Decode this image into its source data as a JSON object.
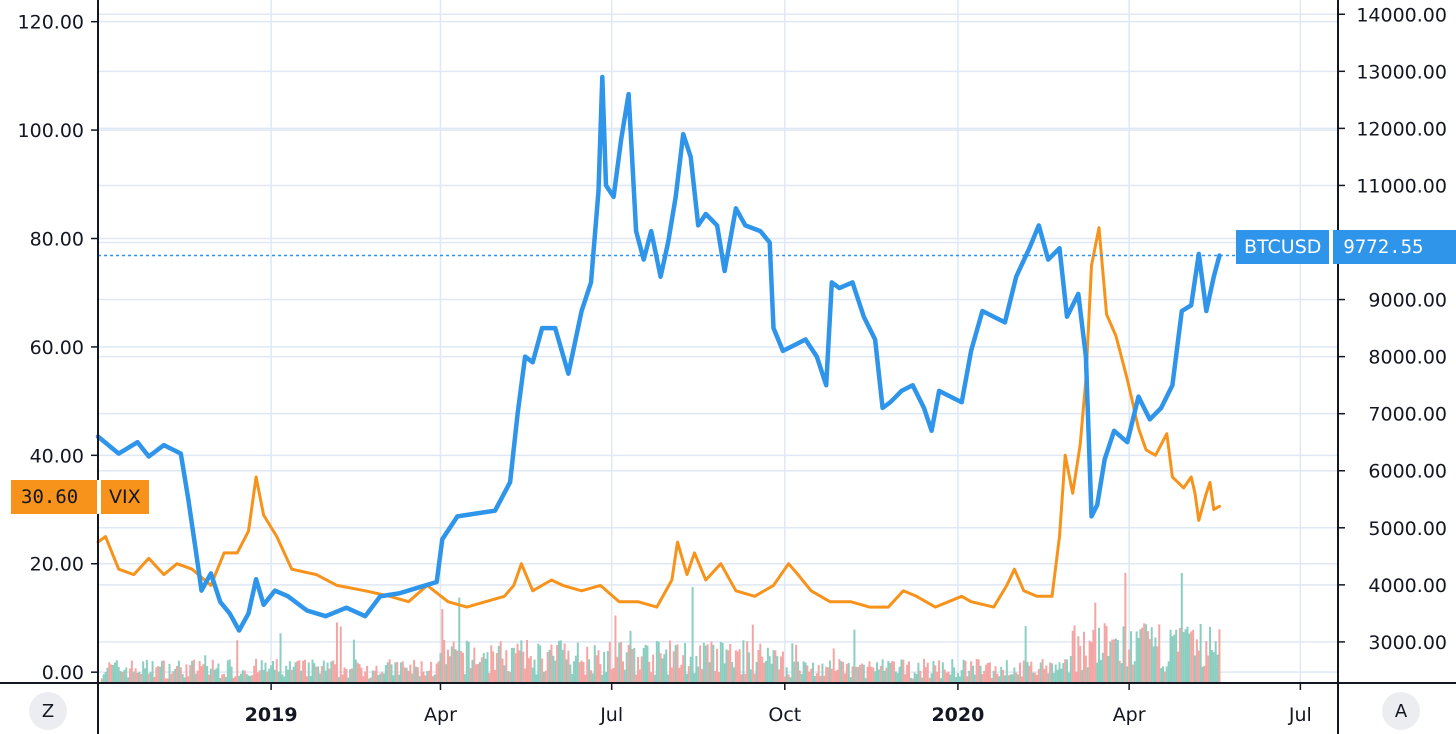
{
  "colors": {
    "btc": "#2f95ea",
    "vix": "#f7931a",
    "grid": "#dfe8f4",
    "vol_up": "#8ccfc1",
    "vol_down": "#f4a6a4",
    "axis": "#131722"
  },
  "buttons": {
    "left": "Z",
    "right": "A"
  },
  "tags": {
    "btc_label": "BTCUSD",
    "btc_value": "9772.55",
    "vix_value": "30.60",
    "vix_label": "VIX"
  },
  "chart_data": {
    "type": "line",
    "x_ticks": [
      "2019",
      "Apr",
      "Jul",
      "Oct",
      "2020",
      "Apr",
      "Jul"
    ],
    "x_ticks_bold": [
      true,
      false,
      false,
      false,
      true,
      false,
      false
    ],
    "x_tick_dates": [
      "2019-01-01",
      "2019-04-01",
      "2019-07-01",
      "2019-10-01",
      "2020-01-01",
      "2020-04-01",
      "2020-07-01"
    ],
    "x_range": [
      "2018-10-01",
      "2020-07-21"
    ],
    "left_axis": {
      "ticks": [
        "0.00",
        "20.00",
        "40.00",
        "60.00",
        "80.00",
        "100.00",
        "120.00"
      ],
      "range": [
        -2,
        124
      ]
    },
    "right_axis": {
      "ticks": [
        "3000.00",
        "4000.00",
        "5000.00",
        "6000.00",
        "7000.00",
        "8000.00",
        "9000.00",
        "10000.00",
        "11000.00",
        "12000.00",
        "13000.00",
        "14000.00"
      ],
      "range": [
        2280,
        14250
      ]
    },
    "series": [
      {
        "name": "BTCUSD",
        "axis": "right",
        "points": [
          [
            "2018-10-01",
            6600
          ],
          [
            "2018-10-12",
            6300
          ],
          [
            "2018-10-22",
            6500
          ],
          [
            "2018-10-28",
            6250
          ],
          [
            "2018-11-05",
            6450
          ],
          [
            "2018-11-14",
            6300
          ],
          [
            "2018-11-18",
            5500
          ],
          [
            "2018-11-22",
            4600
          ],
          [
            "2018-11-25",
            3900
          ],
          [
            "2018-11-30",
            4200
          ],
          [
            "2018-12-05",
            3700
          ],
          [
            "2018-12-10",
            3500
          ],
          [
            "2018-12-15",
            3200
          ],
          [
            "2018-12-20",
            3500
          ],
          [
            "2018-12-24",
            4100
          ],
          [
            "2018-12-28",
            3650
          ],
          [
            "2019-01-03",
            3900
          ],
          [
            "2019-01-10",
            3800
          ],
          [
            "2019-01-20",
            3550
          ],
          [
            "2019-01-30",
            3450
          ],
          [
            "2019-02-10",
            3600
          ],
          [
            "2019-02-20",
            3450
          ],
          [
            "2019-02-28",
            3800
          ],
          [
            "2019-03-10",
            3850
          ],
          [
            "2019-03-20",
            3950
          ],
          [
            "2019-03-30",
            4050
          ],
          [
            "2019-04-02",
            4800
          ],
          [
            "2019-04-10",
            5200
          ],
          [
            "2019-04-20",
            5250
          ],
          [
            "2019-04-30",
            5300
          ],
          [
            "2019-05-08",
            5800
          ],
          [
            "2019-05-12",
            7000
          ],
          [
            "2019-05-16",
            8000
          ],
          [
            "2019-05-20",
            7900
          ],
          [
            "2019-05-25",
            8500
          ],
          [
            "2019-06-01",
            8500
          ],
          [
            "2019-06-08",
            7700
          ],
          [
            "2019-06-15",
            8800
          ],
          [
            "2019-06-20",
            9300
          ],
          [
            "2019-06-24",
            10900
          ],
          [
            "2019-06-26",
            12900
          ],
          [
            "2019-06-28",
            11000
          ],
          [
            "2019-07-02",
            10800
          ],
          [
            "2019-07-06",
            11800
          ],
          [
            "2019-07-10",
            12600
          ],
          [
            "2019-07-14",
            10200
          ],
          [
            "2019-07-18",
            9700
          ],
          [
            "2019-07-22",
            10200
          ],
          [
            "2019-07-27",
            9400
          ],
          [
            "2019-07-31",
            10000
          ],
          [
            "2019-08-04",
            10800
          ],
          [
            "2019-08-08",
            11900
          ],
          [
            "2019-08-12",
            11500
          ],
          [
            "2019-08-16",
            10300
          ],
          [
            "2019-08-20",
            10500
          ],
          [
            "2019-08-26",
            10300
          ],
          [
            "2019-08-30",
            9500
          ],
          [
            "2019-09-05",
            10600
          ],
          [
            "2019-09-10",
            10300
          ],
          [
            "2019-09-18",
            10200
          ],
          [
            "2019-09-23",
            10000
          ],
          [
            "2019-09-25",
            8500
          ],
          [
            "2019-09-30",
            8100
          ],
          [
            "2019-10-06",
            8200
          ],
          [
            "2019-10-12",
            8300
          ],
          [
            "2019-10-18",
            8000
          ],
          [
            "2019-10-23",
            7500
          ],
          [
            "2019-10-26",
            9300
          ],
          [
            "2019-10-30",
            9200
          ],
          [
            "2019-11-06",
            9300
          ],
          [
            "2019-11-12",
            8700
          ],
          [
            "2019-11-18",
            8300
          ],
          [
            "2019-11-22",
            7100
          ],
          [
            "2019-11-26",
            7200
          ],
          [
            "2019-12-02",
            7400
          ],
          [
            "2019-12-08",
            7500
          ],
          [
            "2019-12-14",
            7100
          ],
          [
            "2019-12-18",
            6700
          ],
          [
            "2019-12-22",
            7400
          ],
          [
            "2019-12-28",
            7300
          ],
          [
            "2020-01-03",
            7200
          ],
          [
            "2020-01-08",
            8100
          ],
          [
            "2020-01-14",
            8800
          ],
          [
            "2020-01-20",
            8700
          ],
          [
            "2020-01-26",
            8600
          ],
          [
            "2020-02-01",
            9400
          ],
          [
            "2020-02-08",
            9900
          ],
          [
            "2020-02-13",
            10300
          ],
          [
            "2020-02-18",
            9700
          ],
          [
            "2020-02-24",
            9900
          ],
          [
            "2020-02-28",
            8700
          ],
          [
            "2020-03-05",
            9100
          ],
          [
            "2020-03-09",
            8000
          ],
          [
            "2020-03-12",
            5200
          ],
          [
            "2020-03-15",
            5400
          ],
          [
            "2020-03-19",
            6200
          ],
          [
            "2020-03-24",
            6700
          ],
          [
            "2020-03-31",
            6500
          ],
          [
            "2020-04-06",
            7300
          ],
          [
            "2020-04-12",
            6900
          ],
          [
            "2020-04-18",
            7100
          ],
          [
            "2020-04-24",
            7500
          ],
          [
            "2020-04-29",
            8800
          ],
          [
            "2020-05-04",
            8900
          ],
          [
            "2020-05-08",
            9800
          ],
          [
            "2020-05-12",
            8800
          ],
          [
            "2020-05-16",
            9400
          ],
          [
            "2020-05-19",
            9772.55
          ]
        ]
      },
      {
        "name": "VIX",
        "axis": "left",
        "points": [
          [
            "2018-10-01",
            24
          ],
          [
            "2018-10-05",
            25
          ],
          [
            "2018-10-12",
            19
          ],
          [
            "2018-10-20",
            18
          ],
          [
            "2018-10-28",
            21
          ],
          [
            "2018-11-05",
            18
          ],
          [
            "2018-11-12",
            20
          ],
          [
            "2018-11-20",
            19
          ],
          [
            "2018-11-30",
            16
          ],
          [
            "2018-12-07",
            22
          ],
          [
            "2018-12-14",
            22
          ],
          [
            "2018-12-20",
            26
          ],
          [
            "2018-12-24",
            36
          ],
          [
            "2018-12-28",
            29
          ],
          [
            "2019-01-04",
            25
          ],
          [
            "2019-01-12",
            19
          ],
          [
            "2019-01-25",
            18
          ],
          [
            "2019-02-05",
            16
          ],
          [
            "2019-02-20",
            15
          ],
          [
            "2019-03-05",
            14
          ],
          [
            "2019-03-15",
            13
          ],
          [
            "2019-03-25",
            16
          ],
          [
            "2019-04-05",
            13
          ],
          [
            "2019-04-15",
            12
          ],
          [
            "2019-04-25",
            13
          ],
          [
            "2019-05-05",
            14
          ],
          [
            "2019-05-10",
            16
          ],
          [
            "2019-05-14",
            20
          ],
          [
            "2019-05-20",
            15
          ],
          [
            "2019-05-30",
            17
          ],
          [
            "2019-06-05",
            16
          ],
          [
            "2019-06-15",
            15
          ],
          [
            "2019-06-25",
            16
          ],
          [
            "2019-07-05",
            13
          ],
          [
            "2019-07-15",
            13
          ],
          [
            "2019-07-25",
            12
          ],
          [
            "2019-08-02",
            17
          ],
          [
            "2019-08-05",
            24
          ],
          [
            "2019-08-10",
            18
          ],
          [
            "2019-08-14",
            22
          ],
          [
            "2019-08-20",
            17
          ],
          [
            "2019-08-28",
            20
          ],
          [
            "2019-09-05",
            15
          ],
          [
            "2019-09-15",
            14
          ],
          [
            "2019-09-25",
            16
          ],
          [
            "2019-10-03",
            20
          ],
          [
            "2019-10-08",
            18
          ],
          [
            "2019-10-15",
            15
          ],
          [
            "2019-10-25",
            13
          ],
          [
            "2019-11-05",
            13
          ],
          [
            "2019-11-15",
            12
          ],
          [
            "2019-11-25",
            12
          ],
          [
            "2019-12-03",
            15
          ],
          [
            "2019-12-10",
            14
          ],
          [
            "2019-12-20",
            12
          ],
          [
            "2020-01-03",
            14
          ],
          [
            "2020-01-08",
            13
          ],
          [
            "2020-01-20",
            12
          ],
          [
            "2020-01-27",
            16
          ],
          [
            "2020-01-31",
            19
          ],
          [
            "2020-02-05",
            15
          ],
          [
            "2020-02-12",
            14
          ],
          [
            "2020-02-20",
            14
          ],
          [
            "2020-02-24",
            25
          ],
          [
            "2020-02-27",
            40
          ],
          [
            "2020-03-02",
            33
          ],
          [
            "2020-03-06",
            42
          ],
          [
            "2020-03-09",
            54
          ],
          [
            "2020-03-12",
            75
          ],
          [
            "2020-03-16",
            82
          ],
          [
            "2020-03-20",
            66
          ],
          [
            "2020-03-25",
            62
          ],
          [
            "2020-03-31",
            54
          ],
          [
            "2020-04-06",
            45
          ],
          [
            "2020-04-10",
            41
          ],
          [
            "2020-04-15",
            40
          ],
          [
            "2020-04-21",
            44
          ],
          [
            "2020-04-24",
            36
          ],
          [
            "2020-04-30",
            34
          ],
          [
            "2020-05-04",
            36
          ],
          [
            "2020-05-06",
            33
          ],
          [
            "2020-05-08",
            28
          ],
          [
            "2020-05-12",
            33
          ],
          [
            "2020-05-14",
            35
          ],
          [
            "2020-05-16",
            30
          ],
          [
            "2020-05-19",
            30.6
          ]
        ]
      }
    ],
    "price_line": {
      "series": "BTCUSD",
      "value": 9772.55
    }
  }
}
